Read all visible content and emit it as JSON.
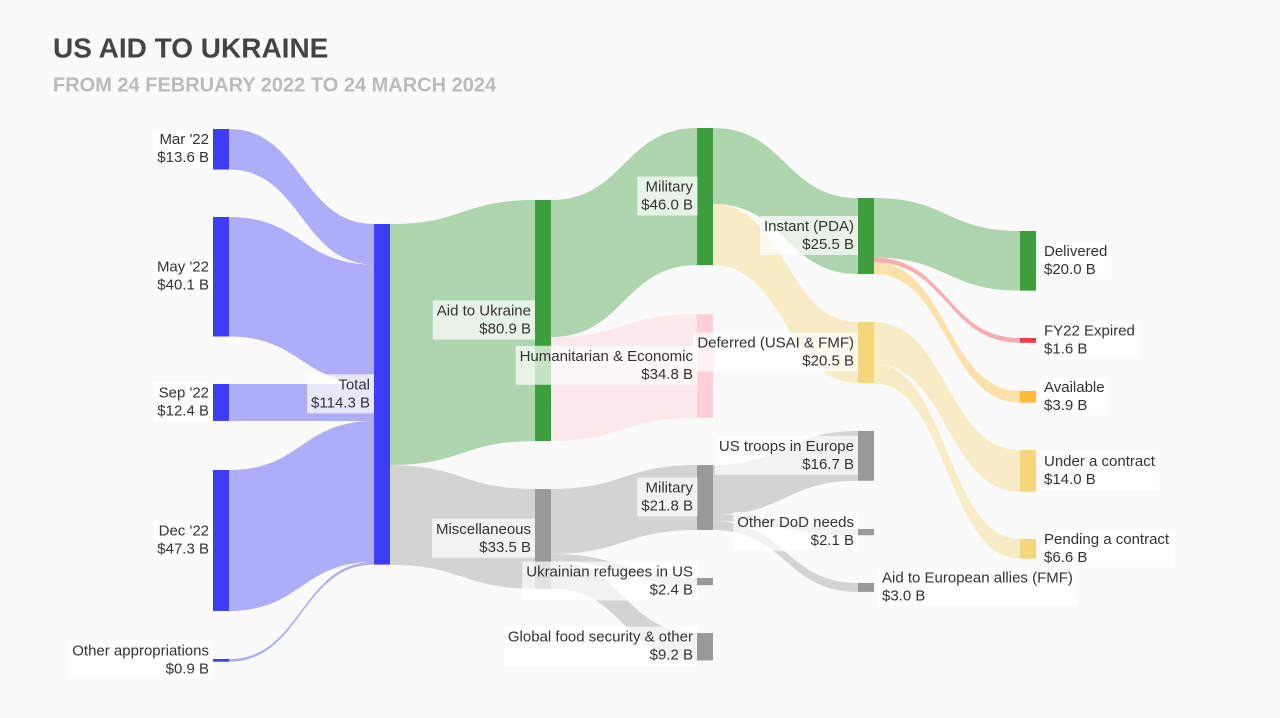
{
  "chart_data": {
    "type": "sankey",
    "title": "US AID TO UKRAINE",
    "subtitle": "FROM 24 FEBRUARY 2022 TO 24 MARCH 2024",
    "nodes": [
      {
        "name": "Mar '22",
        "value": 13.6,
        "value_label": "$13.6 B",
        "color": "#3d3df5"
      },
      {
        "name": "May '22",
        "value": 40.1,
        "value_label": "$40.1 B",
        "color": "#3d3df5"
      },
      {
        "name": "Sep '22",
        "value": 12.4,
        "value_label": "$12.4 B",
        "color": "#3d3df5"
      },
      {
        "name": "Dec '22",
        "value": 47.3,
        "value_label": "$47.3 B",
        "color": "#3d3df5"
      },
      {
        "name": "Other appropriations",
        "value": 0.9,
        "value_label": "$0.9 B",
        "color": "#3d3df5"
      },
      {
        "name": "Total",
        "value": 114.3,
        "value_label": "$114.3 B",
        "color": "#3d3df5"
      },
      {
        "name": "Aid to Ukraine",
        "value": 80.9,
        "value_label": "$80.9 B",
        "color": "#3d9e3d"
      },
      {
        "name": "Miscellaneous",
        "value": 33.5,
        "value_label": "$33.5 B",
        "color": "#999999"
      },
      {
        "name": "Military",
        "value": 46.0,
        "value_label": "$46.0 B",
        "color": "#3d9e3d"
      },
      {
        "name": "Humanitarian & Economic",
        "value": 34.8,
        "value_label": "$34.8 B",
        "color": "#ffd0d8"
      },
      {
        "name": "Military",
        "value": 21.8,
        "value_label": "$21.8 B",
        "color": "#999999"
      },
      {
        "name": "Ukrainian refugees in US",
        "value": 2.4,
        "value_label": "$2.4 B",
        "color": "#999999"
      },
      {
        "name": "Global food security & other",
        "value": 9.2,
        "value_label": "$9.2 B",
        "color": "#999999"
      },
      {
        "name": "Instant (PDA)",
        "value": 25.5,
        "value_label": "$25.5 B",
        "color": "#3d9e3d"
      },
      {
        "name": "Deferred (USAI & FMF)",
        "value": 20.5,
        "value_label": "$20.5 B",
        "color": "#f5d77a"
      },
      {
        "name": "US troops in Europe",
        "value": 16.7,
        "value_label": "$16.7 B",
        "color": "#999999"
      },
      {
        "name": "Other DoD needs",
        "value": 2.1,
        "value_label": "$2.1 B",
        "color": "#999999"
      },
      {
        "name": "Aid to European allies (FMF)",
        "value": 3.0,
        "value_label": "$3.0 B",
        "color": "#999999"
      },
      {
        "name": "Delivered",
        "value": 20.0,
        "value_label": "$20.0 B",
        "color": "#3d9e3d"
      },
      {
        "name": "FY22 Expired",
        "value": 1.6,
        "value_label": "$1.6 B",
        "color": "#f03c3c"
      },
      {
        "name": "Available",
        "value": 3.9,
        "value_label": "$3.9 B",
        "color": "#ffbb33"
      },
      {
        "name": "Under a contract",
        "value": 14.0,
        "value_label": "$14.0 B",
        "color": "#f5d77a"
      },
      {
        "name": "Pending a contract",
        "value": 6.6,
        "value_label": "$6.6 B",
        "color": "#f5d77a"
      }
    ],
    "links": [
      {
        "source": 0,
        "target": 5,
        "value": 13.6
      },
      {
        "source": 1,
        "target": 5,
        "value": 40.1
      },
      {
        "source": 2,
        "target": 5,
        "value": 12.4
      },
      {
        "source": 3,
        "target": 5,
        "value": 47.3
      },
      {
        "source": 4,
        "target": 5,
        "value": 0.9
      },
      {
        "source": 5,
        "target": 6,
        "value": 80.9
      },
      {
        "source": 5,
        "target": 7,
        "value": 33.5
      },
      {
        "source": 6,
        "target": 8,
        "value": 46.0
      },
      {
        "source": 6,
        "target": 9,
        "value": 34.8
      },
      {
        "source": 7,
        "target": 10,
        "value": 21.8
      },
      {
        "source": 7,
        "target": 11,
        "value": 2.4
      },
      {
        "source": 7,
        "target": 12,
        "value": 9.2
      },
      {
        "source": 8,
        "target": 13,
        "value": 25.5
      },
      {
        "source": 8,
        "target": 14,
        "value": 20.5
      },
      {
        "source": 10,
        "target": 15,
        "value": 16.7
      },
      {
        "source": 10,
        "target": 16,
        "value": 2.1
      },
      {
        "source": 10,
        "target": 17,
        "value": 3.0
      },
      {
        "source": 13,
        "target": 18,
        "value": 20.0
      },
      {
        "source": 13,
        "target": 19,
        "value": 1.6
      },
      {
        "source": 13,
        "target": 20,
        "value": 3.9
      },
      {
        "source": 14,
        "target": 21,
        "value": 14.0
      },
      {
        "source": 14,
        "target": 22,
        "value": 6.6
      }
    ]
  }
}
